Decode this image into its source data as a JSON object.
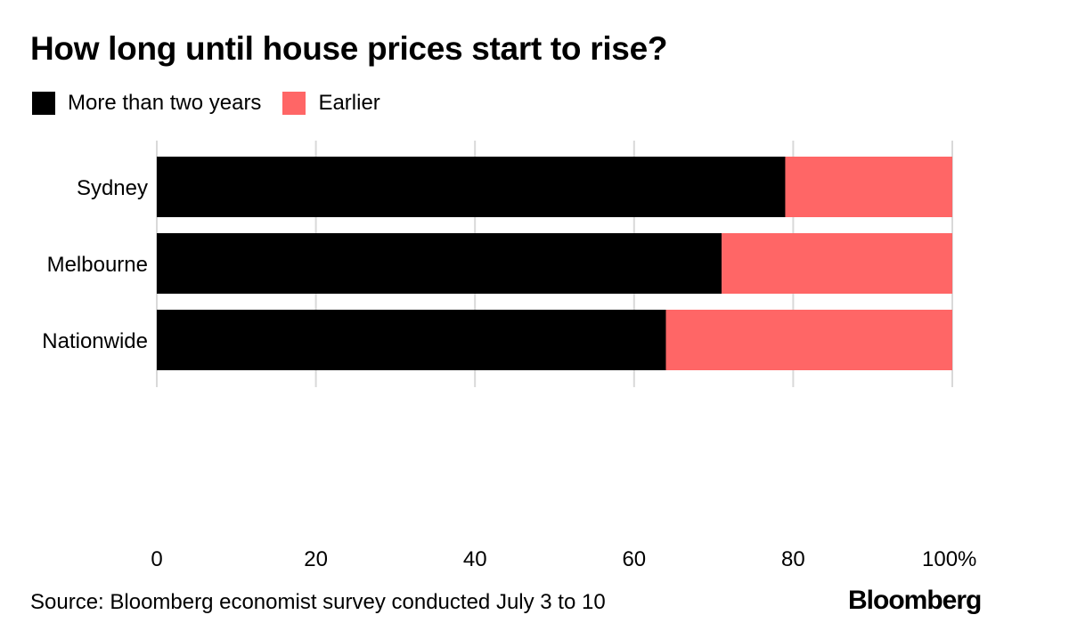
{
  "chart_data": {
    "type": "bar",
    "orientation": "horizontal",
    "stacked": true,
    "title": "How long until house prices start to rise?",
    "categories": [
      "Sydney",
      "Melbourne",
      "Nationwide"
    ],
    "series": [
      {
        "name": "More than two years",
        "color": "#000000",
        "values": [
          79,
          71,
          64
        ]
      },
      {
        "name": "Earlier",
        "color": "#ff6666",
        "values": [
          21,
          29,
          36
        ]
      }
    ],
    "xlim": [
      0,
      100
    ],
    "xticks": [
      "0",
      "20",
      "40",
      "60",
      "80",
      "100%"
    ],
    "xtick_values": [
      0,
      20,
      40,
      60,
      80,
      100
    ],
    "grid": true,
    "legend_position": "top-left"
  },
  "footer": {
    "source": "Source: Bloomberg economist survey conducted July 3 to 10",
    "logo": "Bloomberg"
  }
}
